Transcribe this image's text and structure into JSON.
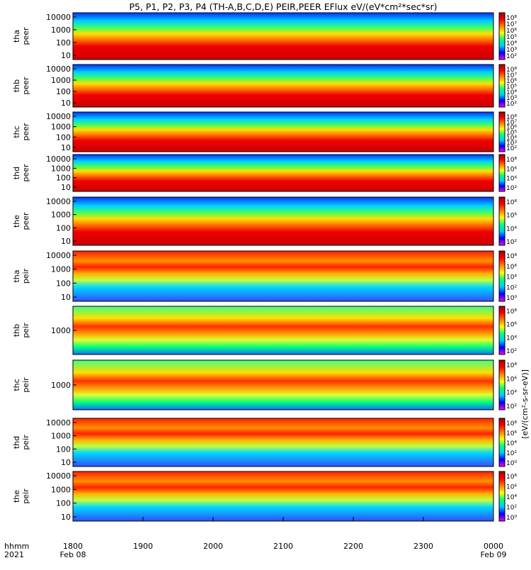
{
  "chart_data": {
    "type": "heatmap",
    "title": "P5, P1, P2, P3, P4 (TH-A,B,C,D,E) PEIR,PEER EFlux eV/(eV*cm²*sec*sr)",
    "x_axis": {
      "row_label_1": "hhmm",
      "row_label_2": "2021",
      "ticks": [
        {
          "value": 0,
          "label": "1800",
          "date": "Feb 08"
        },
        {
          "value": 60,
          "label": "1900",
          "date": ""
        },
        {
          "value": 120,
          "label": "2000",
          "date": ""
        },
        {
          "value": 180,
          "label": "2100",
          "date": ""
        },
        {
          "value": 240,
          "label": "2200",
          "date": ""
        },
        {
          "value": 300,
          "label": "2300",
          "date": ""
        },
        {
          "value": 360,
          "label": "0000",
          "date": "Feb 09"
        }
      ],
      "range_minutes": [
        0,
        360
      ]
    },
    "colorbar": {
      "label": "[eV/(cm²-s-sr-eV)]",
      "colors": [
        "#ff00ff",
        "#0000ff",
        "#00c8ff",
        "#00ff80",
        "#ffff00",
        "#ff8000",
        "#ff0000",
        "#a00000"
      ]
    },
    "panels": [
      {
        "probe": "tha",
        "species": "peer",
        "yticks": [
          "10000",
          "1000",
          "100",
          "10"
        ],
        "cb_ticks": [
          "10⁸",
          "10⁷",
          "10⁶",
          "10⁵",
          "10⁴",
          "10³",
          "10²"
        ]
      },
      {
        "probe": "thb",
        "species": "peer",
        "yticks": [
          "10000",
          "1000",
          "100",
          "10"
        ],
        "cb_ticks": [
          "10⁸",
          "10⁷",
          "10⁶",
          "10⁵",
          "10⁴",
          "10³",
          "10²"
        ]
      },
      {
        "probe": "thc",
        "species": "peer",
        "yticks": [
          "10000",
          "1000",
          "100",
          "10"
        ],
        "cb_ticks": [
          "10⁸",
          "10⁷",
          "10⁶",
          "10⁵",
          "10⁴",
          "10³",
          "10²"
        ]
      },
      {
        "probe": "thd",
        "species": "peer",
        "yticks": [
          "10000",
          "1000",
          "100",
          "10"
        ],
        "cb_ticks": [
          "10⁸",
          "10⁶",
          "10⁴",
          "10²"
        ]
      },
      {
        "probe": "the",
        "species": "peer",
        "yticks": [
          "10000",
          "1000",
          "100",
          "10"
        ],
        "cb_ticks": [
          "10⁸",
          "10⁶",
          "10⁴",
          "10²"
        ]
      },
      {
        "probe": "tha",
        "species": "peir",
        "yticks": [
          "10000",
          "1000",
          "100",
          "10"
        ],
        "cb_ticks": [
          "10⁸",
          "10⁶",
          "10⁴",
          "10²",
          "10⁰"
        ]
      },
      {
        "probe": "thb",
        "species": "peir",
        "yticks": [
          "1000"
        ],
        "cb_ticks": [
          "10⁸",
          "10⁶",
          "10⁴",
          "10²"
        ]
      },
      {
        "probe": "thc",
        "species": "peir",
        "yticks": [
          "1000"
        ],
        "cb_ticks": [
          "10⁸",
          "10⁶",
          "10⁴",
          "10²"
        ]
      },
      {
        "probe": "thd",
        "species": "peir",
        "yticks": [
          "10000",
          "1000",
          "100",
          "10"
        ],
        "cb_ticks": [
          "10⁸",
          "10⁶",
          "10⁴",
          "10²",
          "10⁰"
        ]
      },
      {
        "probe": "the",
        "species": "peir",
        "yticks": [
          "10000",
          "1000",
          "100",
          "10"
        ],
        "cb_ticks": [
          "10⁸",
          "10⁶",
          "10⁴",
          "10²",
          "10⁰"
        ]
      }
    ]
  }
}
